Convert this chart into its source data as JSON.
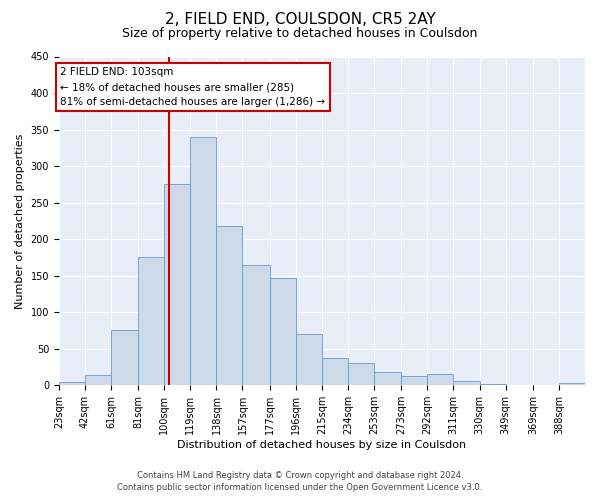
{
  "title": "2, FIELD END, COULSDON, CR5 2AY",
  "subtitle": "Size of property relative to detached houses in Coulsdon",
  "xlabel": "Distribution of detached houses by size in Coulsdon",
  "ylabel": "Number of detached properties",
  "bar_color": "#ccdaea",
  "bar_edge_color": "#6699cc",
  "background_color": "#e8eef8",
  "grid_color": "#ffffff",
  "bins": [
    23,
    42,
    61,
    81,
    100,
    119,
    138,
    157,
    177,
    196,
    215,
    234,
    253,
    273,
    292,
    311,
    330,
    349,
    369,
    388,
    407
  ],
  "values": [
    5,
    14,
    76,
    175,
    275,
    340,
    218,
    165,
    147,
    70,
    37,
    30,
    18,
    13,
    15,
    6,
    2,
    0,
    0,
    3
  ],
  "property_size": 103,
  "vline_color": "#cc0000",
  "annotation_line1": "2 FIELD END: 103sqm",
  "annotation_line2": "← 18% of detached houses are smaller (285)",
  "annotation_line3": "81% of semi-detached houses are larger (1,286) →",
  "annotation_box_color": "#ffffff",
  "annotation_box_edge": "#cc0000",
  "ylim": [
    0,
    450
  ],
  "yticks": [
    0,
    50,
    100,
    150,
    200,
    250,
    300,
    350,
    400,
    450
  ],
  "footer_line1": "Contains HM Land Registry data © Crown copyright and database right 2024.",
  "footer_line2": "Contains public sector information licensed under the Open Government Licence v3.0.",
  "title_fontsize": 11,
  "subtitle_fontsize": 9,
  "axis_label_fontsize": 8,
  "tick_label_fontsize": 7,
  "annotation_fontsize": 7.5,
  "footer_fontsize": 6
}
